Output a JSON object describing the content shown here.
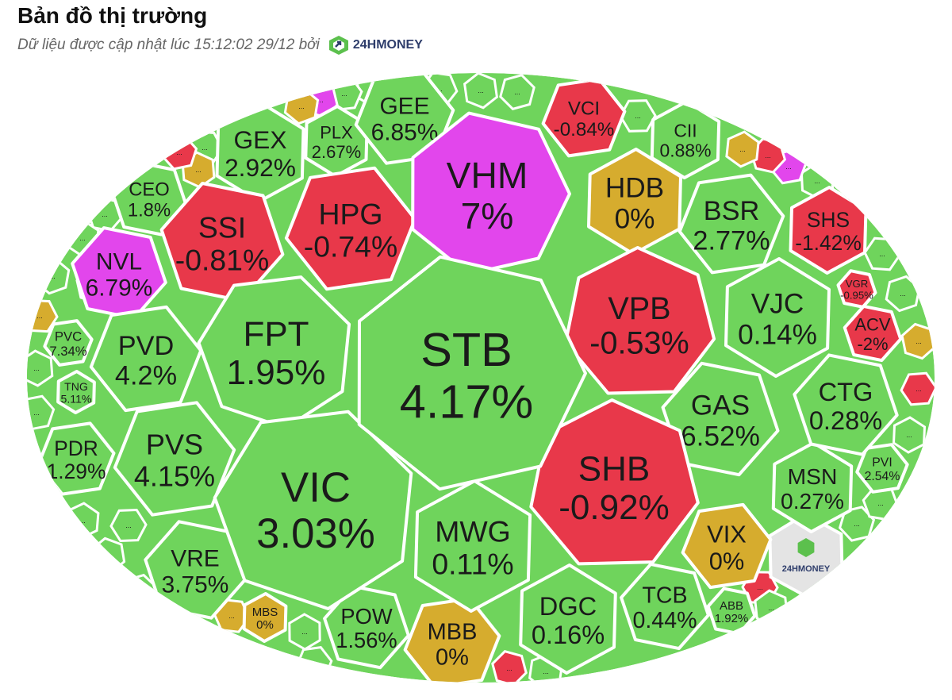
{
  "header": {
    "title": "Bản đồ thị trường",
    "subtitle": "Dữ liệu được cập nhật lúc 15:12:02 29/12 bởi",
    "brand": "24HMONEY"
  },
  "colors": {
    "up": "#6fd45c",
    "down": "#e8384a",
    "flat": "#d6ac2e",
    "ceiling": "#e246ec",
    "logo_cell": "#e4e4e4",
    "brand_green": "#5cc04d",
    "brand_blue": "#2e3d6b"
  },
  "chart_data": {
    "type": "treemap",
    "title": "Bản đồ thị trường",
    "legend": "color: green = increase, red = decrease, yellow = unchanged, magenta = ceiling",
    "placeholder_label": "...",
    "logo_label": "24HMONEY",
    "cells": [
      {
        "ticker": "STB",
        "change": "4.17%",
        "status": "up"
      },
      {
        "ticker": "VIC",
        "change": "3.03%",
        "status": "up"
      },
      {
        "ticker": "VHM",
        "change": "7%",
        "status": "ceiling"
      },
      {
        "ticker": "FPT",
        "change": "1.95%",
        "status": "up"
      },
      {
        "ticker": "SHB",
        "change": "-0.92%",
        "status": "down"
      },
      {
        "ticker": "VPB",
        "change": "-0.53%",
        "status": "down"
      },
      {
        "ticker": "MWG",
        "change": "0.11%",
        "status": "up"
      },
      {
        "ticker": "HPG",
        "change": "-0.74%",
        "status": "down"
      },
      {
        "ticker": "SSI",
        "change": "-0.81%",
        "status": "down"
      },
      {
        "ticker": "GAS",
        "change": "6.52%",
        "status": "up"
      },
      {
        "ticker": "VJC",
        "change": "0.14%",
        "status": "up"
      },
      {
        "ticker": "HDB",
        "change": "0%",
        "status": "flat"
      },
      {
        "ticker": "BSR",
        "change": "2.77%",
        "status": "up"
      },
      {
        "ticker": "PVS",
        "change": "4.15%",
        "status": "up"
      },
      {
        "ticker": "PVD",
        "change": "4.2%",
        "status": "up"
      },
      {
        "ticker": "GEX",
        "change": "2.92%",
        "status": "up"
      },
      {
        "ticker": "GEE",
        "change": "6.85%",
        "status": "up"
      },
      {
        "ticker": "CTG",
        "change": "0.28%",
        "status": "up"
      },
      {
        "ticker": "DGC",
        "change": "0.16%",
        "status": "up"
      },
      {
        "ticker": "VIX",
        "change": "0%",
        "status": "flat"
      },
      {
        "ticker": "MBB",
        "change": "0%",
        "status": "flat"
      },
      {
        "ticker": "VRE",
        "change": "3.75%",
        "status": "up"
      },
      {
        "ticker": "NVL",
        "change": "6.79%",
        "status": "ceiling"
      },
      {
        "ticker": "TCB",
        "change": "0.44%",
        "status": "up"
      },
      {
        "ticker": "MSN",
        "change": "0.27%",
        "status": "up"
      },
      {
        "ticker": "POW",
        "change": "1.56%",
        "status": "up"
      },
      {
        "ticker": "SHS",
        "change": "-1.42%",
        "status": "down"
      },
      {
        "ticker": "VCI",
        "change": "-0.84%",
        "status": "down"
      },
      {
        "ticker": "PDR",
        "change": "1.29%",
        "status": "up"
      },
      {
        "ticker": "CEO",
        "change": "1.8%",
        "status": "up"
      },
      {
        "ticker": "CII",
        "change": "0.88%",
        "status": "up"
      },
      {
        "ticker": "PLX",
        "change": "2.67%",
        "status": "up"
      },
      {
        "ticker": "ACV",
        "change": "-2%",
        "status": "down"
      },
      {
        "ticker": "PVC",
        "change": "7.34%",
        "status": "up"
      },
      {
        "ticker": "TNG",
        "change": "5.11%",
        "status": "up"
      },
      {
        "ticker": "VGR",
        "change": "-0.95%",
        "status": "down"
      },
      {
        "ticker": "PVI",
        "change": "2.54%",
        "status": "up"
      },
      {
        "ticker": "ABB",
        "change": "1.92%",
        "status": "up"
      },
      {
        "ticker": "MBS",
        "change": "0%",
        "status": "flat"
      }
    ]
  }
}
